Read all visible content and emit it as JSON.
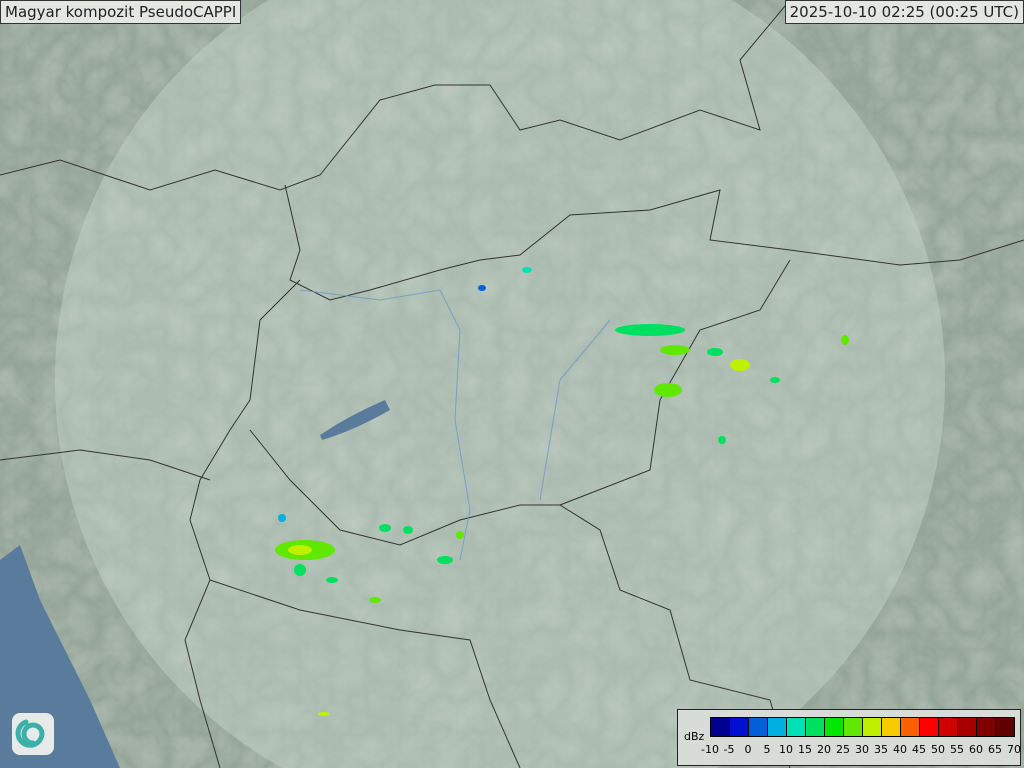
{
  "title": "Magyar kompozit  PseudoCAPPI",
  "timestamp": "2025-10-10 02:25 (00:25 UTC)",
  "legend": {
    "unit": "dBz",
    "ticks": [
      "-10",
      "-5",
      "0",
      "5",
      "10",
      "15",
      "20",
      "25",
      "30",
      "35",
      "40",
      "45",
      "50",
      "55",
      "60",
      "65",
      "70"
    ],
    "colors": [
      "#000090",
      "#0010d0",
      "#0060d8",
      "#00b0e0",
      "#00e0b8",
      "#00e060",
      "#00e800",
      "#60e800",
      "#c0f000",
      "#f8c800",
      "#f86000",
      "#ff0000",
      "#d00000",
      "#a80000",
      "#800000",
      "#600000"
    ]
  },
  "logo": {
    "icon": "swirl-logo-icon"
  },
  "map_colors": {
    "terrain": "#8e9e92",
    "radar_coverage": "#b4c4bc",
    "water": "#5a7c9c",
    "border": "#333333",
    "river": "#6a9ac8"
  }
}
